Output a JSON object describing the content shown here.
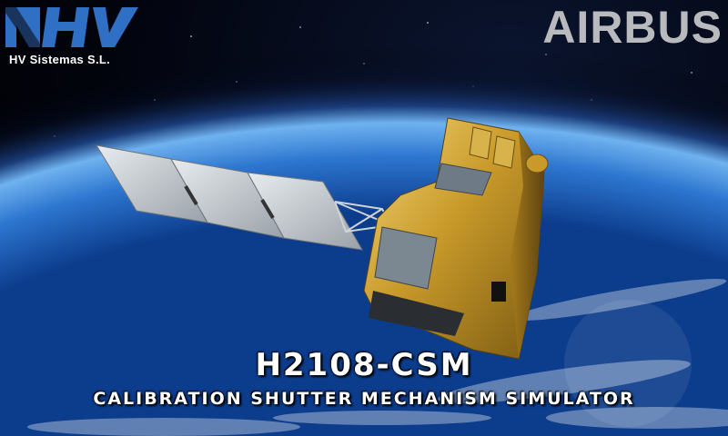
{
  "company": {
    "logo_name": "HV",
    "name": "HV Sistemas S.L."
  },
  "partner": {
    "name": "AIRBUS"
  },
  "product": {
    "code": "H2108-CSM",
    "description": "CALIBRATION SHUTTER MECHANISM SIMULATOR"
  },
  "colors": {
    "hv_blue": "#2f6fc4",
    "airbus_grey": "#b8babd",
    "gold": "#c99a2a"
  }
}
